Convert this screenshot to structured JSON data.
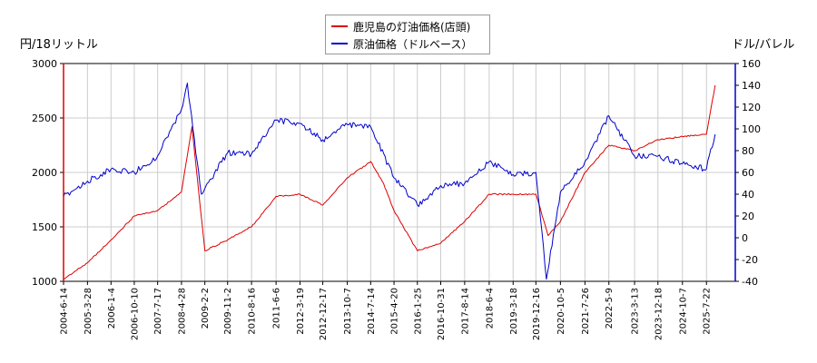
{
  "chart_data": {
    "type": "line",
    "left_axis_label": "円/18リットル",
    "right_axis_label": "ドル/バレル",
    "left_ylim": [
      1000,
      3000
    ],
    "left_ticks": [
      1000,
      1500,
      2000,
      2500,
      3000
    ],
    "right_ylim": [
      -40,
      160
    ],
    "right_ticks": [
      -40,
      -20,
      0,
      20,
      40,
      60,
      80,
      100,
      120,
      140,
      160
    ],
    "x_ticks": [
      "2004-6-14",
      "2005-3-28",
      "2006-1-4",
      "2006-10-10",
      "2007-7-17",
      "2008-4-28",
      "2009-2-2",
      "2009-11-2",
      "2010-8-16",
      "2011-6-6",
      "2012-3-19",
      "2012-12-17",
      "2013-10-7",
      "2014-7-14",
      "2015-4-20",
      "2016-1-25",
      "2016-10-31",
      "2017-8-14",
      "2018-6-4",
      "2019-3-18",
      "2019-12-16",
      "2020-10-5",
      "2021-7-26",
      "2022-5-9",
      "2023-3-13",
      "2023-12-18",
      "2024-10-7",
      "2025-7-22"
    ],
    "grid": true,
    "legend_position": "top-center",
    "series": [
      {
        "name": "鹿児島の灯油価格(店頭)",
        "axis": "left",
        "color": "#dd0000",
        "x": [
          "2004-6-14",
          "2005-3-28",
          "2006-1-4",
          "2006-10-10",
          "2007-7-17",
          "2008-4-28",
          "2008-9-1",
          "2009-2-2",
          "2009-11-2",
          "2010-8-16",
          "2011-6-6",
          "2012-3-19",
          "2012-12-17",
          "2013-10-7",
          "2014-7-14",
          "2014-12-15",
          "2015-4-20",
          "2016-1-25",
          "2016-10-31",
          "2017-8-14",
          "2018-6-4",
          "2019-3-18",
          "2019-12-16",
          "2020-5-11",
          "2020-10-5",
          "2021-7-26",
          "2022-5-9",
          "2023-3-13",
          "2023-12-18",
          "2024-10-7",
          "2025-7-22",
          "2025-11-3"
        ],
        "values": [
          1020,
          1170,
          1380,
          1600,
          1650,
          1820,
          2420,
          1280,
          1380,
          1500,
          1780,
          1800,
          1700,
          1950,
          2100,
          1900,
          1650,
          1280,
          1350,
          1550,
          1800,
          1800,
          1800,
          1420,
          1550,
          2000,
          2250,
          2200,
          2300,
          2330,
          2350,
          2800
        ]
      },
      {
        "name": "原油価格（ドルベース）",
        "axis": "right",
        "color": "#0000cc",
        "x": [
          "2004-6-14",
          "2005-3-28",
          "2006-1-4",
          "2006-10-10",
          "2007-7-17",
          "2008-4-28",
          "2008-7-7",
          "2008-12-22",
          "2009-11-2",
          "2010-8-16",
          "2011-6-6",
          "2012-3-19",
          "2012-12-17",
          "2013-10-7",
          "2014-7-14",
          "2015-4-20",
          "2016-1-25",
          "2016-10-31",
          "2017-8-14",
          "2018-6-4",
          "2019-3-18",
          "2019-12-16",
          "2020-4-20",
          "2020-10-5",
          "2021-7-26",
          "2022-5-9",
          "2023-3-13",
          "2023-12-18",
          "2024-10-7",
          "2025-7-22",
          "2025-11-3"
        ],
        "values": [
          38,
          52,
          63,
          60,
          75,
          118,
          142,
          40,
          78,
          77,
          108,
          105,
          90,
          104,
          102,
          55,
          30,
          48,
          50,
          70,
          58,
          60,
          -38,
          42,
          70,
          112,
          75,
          75,
          68,
          63,
          95
        ]
      }
    ]
  }
}
